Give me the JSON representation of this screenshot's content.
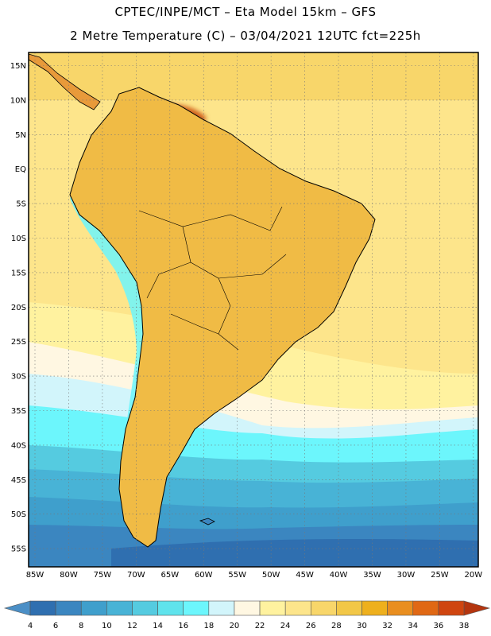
{
  "title_line1": "CPTEC/INPE/MCT –  Eta Model 15km – GFS",
  "title_line2": "2 Metre Temperature (C) – 03/04/2021 12UTC fct=225h",
  "lat_labels": [
    "15N",
    "10N",
    "5N",
    "EQ",
    "5S",
    "10S",
    "15S",
    "20S",
    "25S",
    "30S",
    "35S",
    "40S",
    "45S",
    "50S",
    "55S"
  ],
  "lat_values": [
    15,
    10,
    5,
    0,
    -5,
    -10,
    -15,
    -20,
    -25,
    -30,
    -35,
    -40,
    -45,
    -50,
    -55
  ],
  "lon_labels": [
    "85W",
    "80W",
    "75W",
    "70W",
    "65W",
    "60W",
    "55W",
    "50W",
    "45W",
    "40W",
    "35W",
    "30W",
    "25W",
    "20W"
  ],
  "lon_values": [
    -85,
    -80,
    -75,
    -70,
    -65,
    -60,
    -55,
    -50,
    -45,
    -40,
    -35,
    -30,
    -25,
    -20
  ],
  "colorbar": {
    "ticks": [
      "4",
      "6",
      "8",
      "10",
      "12",
      "14",
      "16",
      "18",
      "20",
      "22",
      "24",
      "26",
      "28",
      "30",
      "32",
      "34",
      "36",
      "38"
    ],
    "colors": [
      "#4b8fc6",
      "#2f6fb0",
      "#3b86c0",
      "#3f9fcc",
      "#48b3d6",
      "#55cbe0",
      "#5fe3ec",
      "#6cf6fc",
      "#d2f5fb",
      "#fff7e2",
      "#fff29f",
      "#fde58b",
      "#f8d66a",
      "#f2c747",
      "#eeb01d",
      "#e98e1f",
      "#e06814",
      "#cf4510",
      "#b4350f"
    ]
  }
}
